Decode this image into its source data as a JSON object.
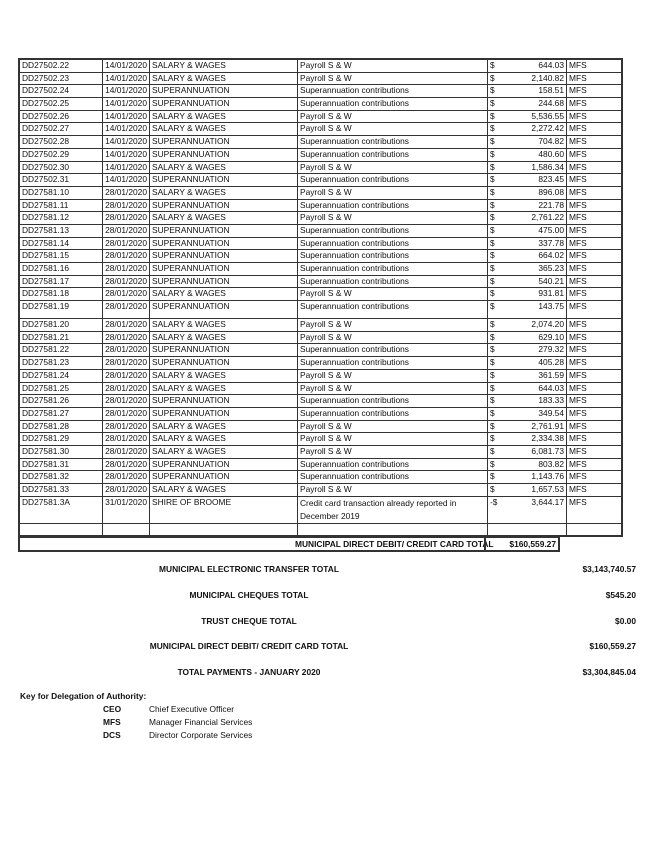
{
  "rows": [
    [
      "DD27502.22",
      "14/01/2020",
      "SALARY & WAGES",
      "Payroll S & W",
      "$",
      "644.03",
      "MFS"
    ],
    [
      "DD27502.23",
      "14/01/2020",
      "SALARY & WAGES",
      "Payroll S & W",
      "$",
      "2,140.82",
      "MFS"
    ],
    [
      "DD27502.24",
      "14/01/2020",
      "SUPERANNUATION",
      "Superannuation contributions",
      "$",
      "158.51",
      "MFS"
    ],
    [
      "DD27502.25",
      "14/01/2020",
      "SUPERANNUATION",
      "Superannuation contributions",
      "$",
      "244.68",
      "MFS"
    ],
    [
      "DD27502.26",
      "14/01/2020",
      "SALARY & WAGES",
      "Payroll S & W",
      "$",
      "5,536.55",
      "MFS"
    ],
    [
      "DD27502.27",
      "14/01/2020",
      "SALARY & WAGES",
      "Payroll S & W",
      "$",
      "2,272.42",
      "MFS"
    ],
    [
      "DD27502.28",
      "14/01/2020",
      "SUPERANNUATION",
      "Superannuation contributions",
      "$",
      "704.82",
      "MFS"
    ],
    [
      "DD27502.29",
      "14/01/2020",
      "SUPERANNUATION",
      "Superannuation contributions",
      "$",
      "480.60",
      "MFS"
    ],
    [
      "DD27502.30",
      "14/01/2020",
      "SALARY & WAGES",
      "Payroll S & W",
      "$",
      "1,586.34",
      "MFS"
    ],
    [
      "DD27502.31",
      "14/01/2020",
      "SUPERANNUATION",
      "Superannuation contributions",
      "$",
      "823.45",
      "MFS"
    ],
    [
      "DD27581.10",
      "28/01/2020",
      "SALARY & WAGES",
      "Payroll S & W",
      "$",
      "896.08",
      "MFS"
    ],
    [
      "DD27581.11",
      "28/01/2020",
      "SUPERANNUATION",
      "Superannuation contributions",
      "$",
      "221.78",
      "MFS"
    ],
    [
      "DD27581.12",
      "28/01/2020",
      "SALARY & WAGES",
      "Payroll S & W",
      "$",
      "2,761.22",
      "MFS"
    ],
    [
      "DD27581.13",
      "28/01/2020",
      "SUPERANNUATION",
      "Superannuation contributions",
      "$",
      "475.00",
      "MFS"
    ],
    [
      "DD27581.14",
      "28/01/2020",
      "SUPERANNUATION",
      "Superannuation contributions",
      "$",
      "337.78",
      "MFS"
    ],
    [
      "DD27581.15",
      "28/01/2020",
      "SUPERANNUATION",
      "Superannuation contributions",
      "$",
      "664.02",
      "MFS"
    ],
    [
      "DD27581.16",
      "28/01/2020",
      "SUPERANNUATION",
      "Superannuation contributions",
      "$",
      "365.23",
      "MFS"
    ],
    [
      "DD27581.17",
      "28/01/2020",
      "SUPERANNUATION",
      "Superannuation contributions",
      "$",
      "540.21",
      "MFS"
    ],
    [
      "DD27581.18",
      "28/01/2020",
      "SALARY & WAGES",
      "Payroll S & W",
      "$",
      "931.81",
      "MFS"
    ],
    [
      "DD27581.19",
      "28/01/2020",
      "SUPERANNUATION",
      "Superannuation contributions",
      "$",
      "143.75",
      "MFS"
    ],
    [
      "DD27581.20",
      "28/01/2020",
      "SALARY & WAGES",
      "Payroll S & W",
      "$",
      "2,074.20",
      "MFS"
    ],
    [
      "DD27581.21",
      "28/01/2020",
      "SALARY & WAGES",
      "Payroll S & W",
      "$",
      "629.10",
      "MFS"
    ],
    [
      "DD27581.22",
      "28/01/2020",
      "SUPERANNUATION",
      "Superannuation contributions",
      "$",
      "279.32",
      "MFS"
    ],
    [
      "DD27581.23",
      "28/01/2020",
      "SUPERANNUATION",
      "Superannuation contributions",
      "$",
      "405.28",
      "MFS"
    ],
    [
      "DD27581.24",
      "28/01/2020",
      "SALARY & WAGES",
      "Payroll S & W",
      "$",
      "361.59",
      "MFS"
    ],
    [
      "DD27581.25",
      "28/01/2020",
      "SALARY & WAGES",
      "Payroll S & W",
      "$",
      "644.03",
      "MFS"
    ],
    [
      "DD27581.26",
      "28/01/2020",
      "SUPERANNUATION",
      "Superannuation contributions",
      "$",
      "183.33",
      "MFS"
    ],
    [
      "DD27581.27",
      "28/01/2020",
      "SUPERANNUATION",
      "Superannuation contributions",
      "$",
      "349.54",
      "MFS"
    ],
    [
      "DD27581.28",
      "28/01/2020",
      "SALARY & WAGES",
      "Payroll S & W",
      "$",
      "2,761.91",
      "MFS"
    ],
    [
      "DD27581.29",
      "28/01/2020",
      "SALARY & WAGES",
      "Payroll S & W",
      "$",
      "2,334.38",
      "MFS"
    ],
    [
      "DD27581.30",
      "28/01/2020",
      "SALARY & WAGES",
      "Payroll S & W",
      "$",
      "6,081.73",
      "MFS"
    ],
    [
      "DD27581.31",
      "28/01/2020",
      "SUPERANNUATION",
      "Superannuation contributions",
      "$",
      "803.82",
      "MFS"
    ],
    [
      "DD27581.32",
      "28/01/2020",
      "SUPERANNUATION",
      "Superannuation contributions",
      "$",
      "1,143.76",
      "MFS"
    ],
    [
      "DD27581.33",
      "28/01/2020",
      "SALARY & WAGES",
      "Payroll S & W",
      "$",
      "1,657.53",
      "MFS"
    ],
    [
      "DD27581.3A",
      "31/01/2020",
      "SHIRE OF BROOME",
      "Credit card transaction already reported in December 2019",
      "-$",
      "3,644.17",
      "MFS"
    ]
  ],
  "table_total": {
    "label": "MUNICIPAL DIRECT DEBIT/ CREDIT CARD TOTAL",
    "value": "$160,559.27"
  },
  "summary": [
    {
      "label": "MUNICIPAL ELECTRONIC TRANSFER TOTAL",
      "value": "$3,143,740.57"
    },
    {
      "label": "MUNICIPAL CHEQUES TOTAL",
      "value": "$545.20"
    },
    {
      "label": "TRUST CHEQUE TOTAL",
      "value": "$0.00"
    },
    {
      "label": "MUNICIPAL DIRECT DEBIT/ CREDIT CARD TOTAL",
      "value": "$160,559.27"
    },
    {
      "label": "TOTAL PAYMENTS - JANUARY 2020",
      "value": "$3,304,845.04"
    }
  ],
  "key": {
    "heading": "Key for Delegation of Authority:",
    "items": [
      {
        "abbr": "CEO",
        "desc": "Chief Executive Officer"
      },
      {
        "abbr": "MFS",
        "desc": "Manager Financial Services"
      },
      {
        "abbr": "DCS",
        "desc": "Director Corporate Services"
      }
    ]
  }
}
